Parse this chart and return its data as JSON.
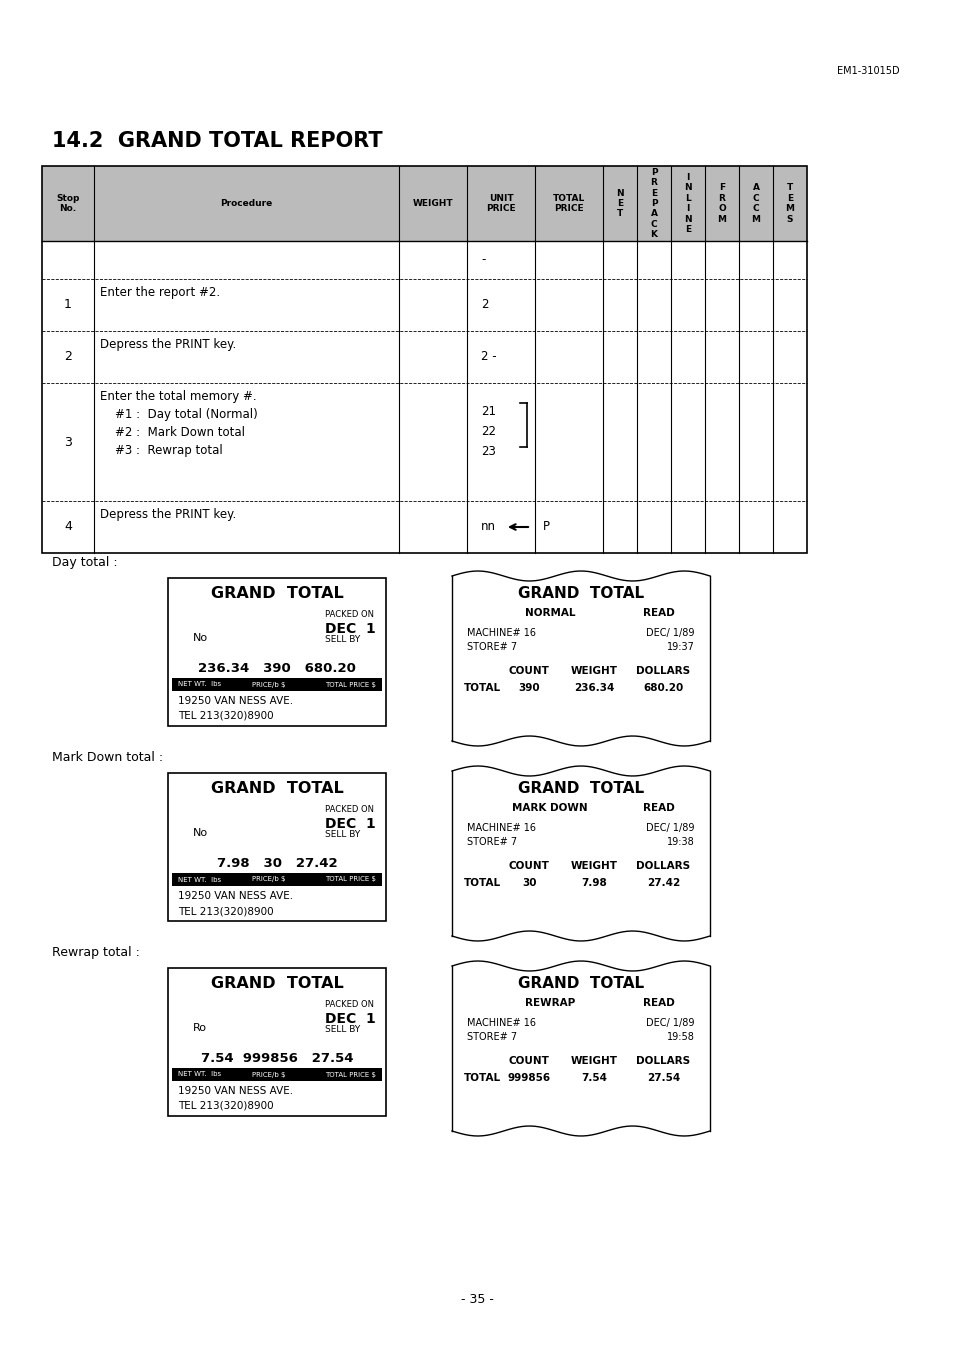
{
  "title": "14.2  GRAND TOTAL REPORT",
  "header_ref": "EM1-31015D",
  "page_num": "- 35 -",
  "bg_color": "#ffffff",
  "table_header_bg": "#bbbbbb",
  "labels": [
    "Day total :",
    "Mark Down total :",
    "Rewrap total :"
  ],
  "receipt_left": [
    {
      "title": "GRAND  TOTAL",
      "packed_on": "PACKED ON",
      "date": "DEC  1",
      "no_label": "No",
      "sell_by": "SELL BY",
      "numbers": "236.34   390   680.20",
      "net_label": "NET WT.",
      "lbs_label": "lbs",
      "price_label": "PRICE/b",
      "lbs2": "$",
      "totalprice": "TOTAL PRICE $",
      "addr1": "19250 VAN NESS AVE.",
      "addr2": "TEL 213(320)8900"
    },
    {
      "title": "GRAND  TOTAL",
      "packed_on": "PACKED ON",
      "date": "DEC  1",
      "no_label": "No",
      "sell_by": "SELL BY",
      "numbers": "7.98   30   27.42",
      "net_label": "NET WT.",
      "lbs_label": "lbs",
      "price_label": "PRICE/b",
      "lbs2": "$",
      "totalprice": "TOTAL PRICE $",
      "addr1": "19250 VAN NESS AVE.",
      "addr2": "TEL 213(320)8900"
    },
    {
      "title": "GRAND  TOTAL",
      "packed_on": "PACKED ON",
      "date": "DEC  1",
      "no_label": "Ro",
      "sell_by": "SELL BY",
      "numbers": "7.54  999856   27.54",
      "net_label": "NET WT.",
      "lbs_label": "lbs",
      "price_label": "PRICE/b",
      "lbs2": "$",
      "totalprice": "TOTAL PRICE $",
      "addr1": "19250 VAN NESS AVE.",
      "addr2": "TEL 213(320)8900"
    }
  ],
  "receipt_right": [
    {
      "title": "GRAND  TOTAL",
      "sub1": "NORMAL",
      "sub2": "READ",
      "machine": "MACHINE# 16",
      "machine_date": "DEC/ 1/89",
      "store": "STORE# 7",
      "store_time": "19:37",
      "col1": "COUNT",
      "col2": "WEIGHT",
      "col3": "DOLLARS",
      "total_label": "TOTAL",
      "total_count": "390",
      "total_weight": "236.34",
      "total_dollars": "680.20"
    },
    {
      "title": "GRAND  TOTAL",
      "sub1": "MARK DOWN",
      "sub2": "READ",
      "machine": "MACHINE# 16",
      "machine_date": "DEC/ 1/89",
      "store": "STORE# 7",
      "store_time": "19:38",
      "col1": "COUNT",
      "col2": "WEIGHT",
      "col3": "DOLLARS",
      "total_label": "TOTAL",
      "total_count": "30",
      "total_weight": "7.98",
      "total_dollars": "27.42"
    },
    {
      "title": "GRAND  TOTAL",
      "sub1": "REWRAP",
      "sub2": "READ",
      "machine": "MACHINE# 16",
      "machine_date": "DEC/ 1/89",
      "store": "STORE# 7",
      "store_time": "19:58",
      "col1": "COUNT",
      "col2": "WEIGHT",
      "col3": "DOLLARS",
      "total_label": "TOTAL",
      "total_count": "999856",
      "total_weight": "7.54",
      "total_dollars": "27.54"
    }
  ]
}
